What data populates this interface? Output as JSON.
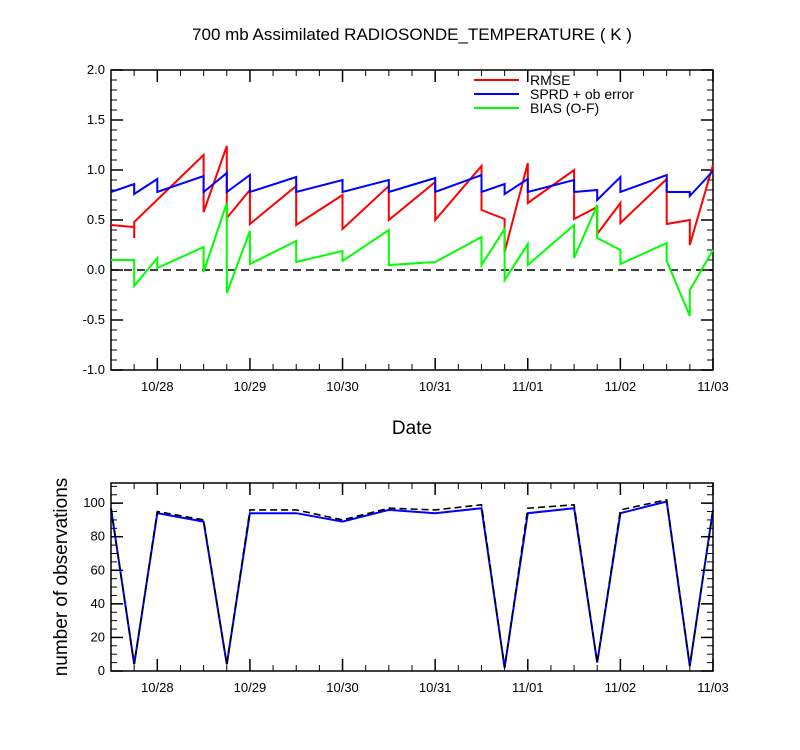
{
  "chart_data": [
    {
      "type": "line",
      "title": "700 mb Assimilated RADIOSONDE_TEMPERATURE ( K )",
      "xlabel": "Date",
      "ylabel": "",
      "xlim": [
        0,
        6.5
      ],
      "ylim": [
        -1.0,
        2.0
      ],
      "xticks": [
        0.5,
        1.5,
        2.5,
        3.5,
        4.5,
        5.5,
        6.5
      ],
      "xtick_labels": [
        "10/28",
        "10/29",
        "10/30",
        "10/31",
        "11/01",
        "11/02",
        "11/03"
      ],
      "yticks": [
        -1.0,
        -0.5,
        0.0,
        0.5,
        1.0,
        1.5,
        2.0
      ],
      "ytick_labels": [
        "-1.0",
        "-0.5",
        "0.0",
        "0.5",
        "1.0",
        "1.5",
        "2.0"
      ],
      "legend_position": "top-right",
      "zero_line": true,
      "series": [
        {
          "name": "RMSE",
          "color": "#ff0000",
          "points": [
            [
              0,
              0.45
            ],
            [
              0.25,
              0.43
            ],
            [
              0.25,
              0.32
            ],
            [
              0.25,
              0.32
            ],
            [
              0.25,
              0.48
            ],
            [
              1.0,
              1.15
            ],
            [
              1.0,
              0.58
            ],
            [
              1.25,
              1.24
            ],
            [
              1.25,
              0.52
            ],
            [
              1.5,
              0.8
            ],
            [
              1.5,
              0.46
            ],
            [
              2.0,
              0.84
            ],
            [
              2.0,
              0.45
            ],
            [
              2.5,
              0.75
            ],
            [
              2.5,
              0.41
            ],
            [
              3.0,
              0.84
            ],
            [
              3.0,
              0.5
            ],
            [
              3.5,
              0.88
            ],
            [
              3.5,
              0.5
            ],
            [
              4.0,
              1.04
            ],
            [
              4.0,
              0.6
            ],
            [
              4.25,
              0.51
            ],
            [
              4.25,
              0.18
            ],
            [
              4.5,
              1.07
            ],
            [
              4.5,
              0.67
            ],
            [
              5.0,
              1.0
            ],
            [
              5.0,
              0.51
            ],
            [
              5.25,
              0.63
            ],
            [
              5.25,
              0.36
            ],
            [
              5.5,
              0.67
            ],
            [
              5.5,
              0.47
            ],
            [
              6.0,
              0.91
            ],
            [
              6.0,
              0.46
            ],
            [
              6.25,
              0.5
            ],
            [
              6.25,
              0.25
            ],
            [
              6.5,
              1.05
            ]
          ]
        },
        {
          "name": "SPRD + ob error",
          "color": "#0000ff",
          "points": [
            [
              0,
              0.78
            ],
            [
              0.25,
              0.86
            ],
            [
              0.25,
              0.76
            ],
            [
              0.5,
              0.91
            ],
            [
              0.5,
              0.78
            ],
            [
              1.0,
              0.94
            ],
            [
              1.0,
              0.78
            ],
            [
              1.25,
              0.97
            ],
            [
              1.25,
              0.78
            ],
            [
              1.5,
              0.95
            ],
            [
              1.5,
              0.78
            ],
            [
              2.0,
              0.93
            ],
            [
              2.0,
              0.78
            ],
            [
              2.5,
              0.9
            ],
            [
              2.5,
              0.78
            ],
            [
              3.0,
              0.9
            ],
            [
              3.0,
              0.78
            ],
            [
              3.5,
              0.92
            ],
            [
              3.5,
              0.78
            ],
            [
              4.0,
              0.95
            ],
            [
              4.0,
              0.78
            ],
            [
              4.25,
              0.86
            ],
            [
              4.25,
              0.76
            ],
            [
              4.5,
              0.91
            ],
            [
              4.5,
              0.78
            ],
            [
              5.0,
              0.9
            ],
            [
              5.0,
              0.78
            ],
            [
              5.25,
              0.8
            ],
            [
              5.25,
              0.7
            ],
            [
              5.5,
              0.93
            ],
            [
              5.5,
              0.78
            ],
            [
              6.0,
              0.95
            ],
            [
              6.0,
              0.78
            ],
            [
              6.25,
              0.78
            ],
            [
              6.25,
              0.74
            ],
            [
              6.5,
              0.99
            ]
          ]
        },
        {
          "name": "BIAS (O-F)",
          "color": "#00ff00",
          "points": [
            [
              0,
              0.1
            ],
            [
              0.25,
              0.1
            ],
            [
              0.25,
              -0.16
            ],
            [
              0.5,
              0.12
            ],
            [
              0.5,
              0.02
            ],
            [
              1.0,
              0.23
            ],
            [
              1.0,
              -0.02
            ],
            [
              1.25,
              0.67
            ],
            [
              1.25,
              -0.23
            ],
            [
              1.5,
              0.39
            ],
            [
              1.5,
              0.06
            ],
            [
              2.0,
              0.29
            ],
            [
              2.0,
              0.08
            ],
            [
              2.5,
              0.19
            ],
            [
              2.5,
              0.09
            ],
            [
              3.0,
              0.4
            ],
            [
              3.0,
              0.05
            ],
            [
              3.5,
              0.08
            ],
            [
              4.0,
              0.33
            ],
            [
              4.0,
              0.05
            ],
            [
              4.25,
              0.41
            ],
            [
              4.25,
              -0.1
            ],
            [
              4.5,
              0.26
            ],
            [
              4.5,
              0.05
            ],
            [
              5.0,
              0.45
            ],
            [
              5.0,
              0.12
            ],
            [
              5.25,
              0.65
            ],
            [
              5.25,
              0.32
            ],
            [
              5.5,
              0.2
            ],
            [
              5.5,
              0.06
            ],
            [
              6.0,
              0.27
            ],
            [
              6.0,
              0.09
            ],
            [
              6.25,
              -0.46
            ],
            [
              6.25,
              -0.2
            ],
            [
              6.5,
              0.2
            ]
          ]
        }
      ]
    },
    {
      "type": "line",
      "title": "",
      "xlabel": "",
      "ylabel": "number of observations",
      "xlim": [
        0,
        6.5
      ],
      "ylim": [
        0,
        112
      ],
      "xticks": [
        0.5,
        1.5,
        2.5,
        3.5,
        4.5,
        5.5,
        6.5
      ],
      "xtick_labels": [
        "10/28",
        "10/29",
        "10/30",
        "10/31",
        "11/01",
        "11/02",
        "11/03"
      ],
      "yticks": [
        0,
        20,
        40,
        60,
        80,
        100
      ],
      "ytick_labels": [
        "0",
        "20",
        "40",
        "60",
        "80",
        "100"
      ],
      "series": [
        {
          "color": "#0000ff",
          "style": "solid",
          "points": [
            [
              0,
              97
            ],
            [
              0.25,
              4
            ],
            [
              0.5,
              94
            ],
            [
              1.0,
              89
            ],
            [
              1.25,
              4
            ],
            [
              1.5,
              94
            ],
            [
              2.0,
              94
            ],
            [
              2.5,
              89
            ],
            [
              3.0,
              96
            ],
            [
              3.5,
              94
            ],
            [
              4.0,
              97
            ],
            [
              4.25,
              2
            ],
            [
              4.5,
              94
            ],
            [
              5.0,
              97
            ],
            [
              5.25,
              5
            ],
            [
              5.5,
              94
            ],
            [
              6.0,
              101
            ],
            [
              6.25,
              3
            ],
            [
              6.5,
              96
            ]
          ]
        },
        {
          "color": "#000000",
          "style": "dashed",
          "points": [
            [
              0,
              97
            ],
            [
              0.25,
              4
            ],
            [
              0.5,
              95
            ],
            [
              1.0,
              90
            ],
            [
              1.25,
              4
            ],
            [
              1.5,
              96
            ],
            [
              2.0,
              96
            ],
            [
              2.5,
              90
            ],
            [
              3.0,
              97
            ],
            [
              3.5,
              96
            ],
            [
              4.0,
              99
            ],
            [
              4.25,
              2
            ],
            [
              4.5,
              97
            ],
            [
              5.0,
              99
            ],
            [
              5.25,
              5
            ],
            [
              5.5,
              96
            ],
            [
              6.0,
              102
            ],
            [
              6.25,
              3
            ],
            [
              6.5,
              96
            ]
          ]
        }
      ]
    }
  ]
}
